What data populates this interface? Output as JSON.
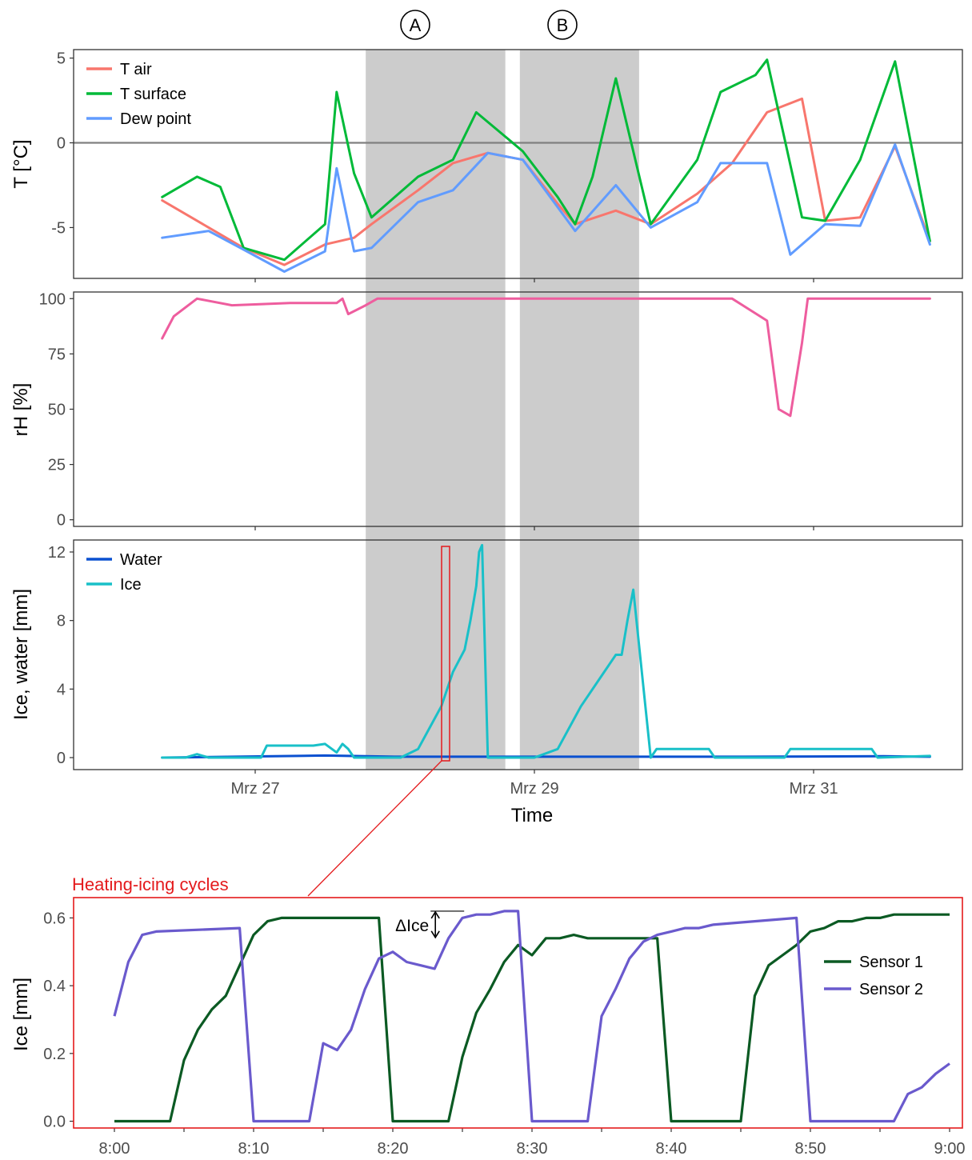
{
  "chart_data": [
    {
      "id": "temperature",
      "type": "line",
      "ylabel": "T [°C]",
      "ylim": [
        -8,
        5.5
      ],
      "yticks": [
        5,
        0,
        -5
      ],
      "ytick_labels": [
        "5",
        "0",
        "-5"
      ],
      "x_range_days": [
        "Mrz 26 08:00",
        "Mrz 31 20:00"
      ],
      "reference_line": 0,
      "shaded_periods": [
        {
          "label": "A",
          "start": "Mrz 27 19:00",
          "end": "Mrz 28 19:00"
        },
        {
          "label": "B",
          "start": "Mrz 28 21:30",
          "end": "Mrz 29 18:00"
        }
      ],
      "legend_position": "top-left",
      "series": [
        {
          "name": "T air",
          "color": "#f8766d",
          "x": [
            "Mrz 26 08:00",
            "Mrz 26 16:00",
            "Mrz 26 22:00",
            "Mrz 27 05:00",
            "Mrz 27 12:00",
            "Mrz 27 17:00",
            "Mrz 27 20:00",
            "Mrz 28 04:00",
            "Mrz 28 10:00",
            "Mrz 28 16:00",
            "Mrz 28 22:00",
            "Mrz 29 04:00",
            "Mrz 29 07:00",
            "Mrz 29 14:00",
            "Mrz 29 20:00",
            "Mrz 30 04:00",
            "Mrz 30 10:00",
            "Mrz 30 16:00",
            "Mrz 30 22:00",
            "Mrz 31 02:00",
            "Mrz 31 08:00",
            "Mrz 31 14:00",
            "Mrz 31 20:00"
          ],
          "y": [
            -3.4,
            -5.0,
            -6.2,
            -7.2,
            -6.0,
            -5.6,
            -4.8,
            -2.8,
            -1.2,
            -0.6,
            -1.0,
            -3.6,
            -4.8,
            -4.0,
            -4.8,
            -3.0,
            -1.2,
            1.8,
            2.6,
            -4.6,
            -4.4,
            -0.2,
            -5.8
          ]
        },
        {
          "name": "T surface",
          "color": "#00ba38",
          "x": [
            "Mrz 26 08:00",
            "Mrz 26 14:00",
            "Mrz 26 18:00",
            "Mrz 26 22:00",
            "Mrz 27 05:00",
            "Mrz 27 12:00",
            "Mrz 27 14:00",
            "Mrz 27 17:00",
            "Mrz 27 20:00",
            "Mrz 28 04:00",
            "Mrz 28 10:00",
            "Mrz 28 14:00",
            "Mrz 28 22:00",
            "Mrz 29 04:00",
            "Mrz 29 07:00",
            "Mrz 29 10:00",
            "Mrz 29 14:00",
            "Mrz 29 20:00",
            "Mrz 30 04:00",
            "Mrz 30 08:00",
            "Mrz 30 14:00",
            "Mrz 30 16:00",
            "Mrz 30 22:00",
            "Mrz 31 02:00",
            "Mrz 31 08:00",
            "Mrz 31 14:00",
            "Mrz 31 20:00"
          ],
          "y": [
            -3.2,
            -2.0,
            -2.6,
            -6.2,
            -6.9,
            -4.8,
            3.0,
            -1.8,
            -4.4,
            -2.0,
            -1.0,
            1.8,
            -0.5,
            -3.2,
            -4.8,
            -2.0,
            3.8,
            -4.8,
            -1.0,
            3.0,
            4.0,
            4.9,
            -4.4,
            -4.6,
            -1.0,
            4.8,
            -5.8
          ]
        },
        {
          "name": "Dew point",
          "color": "#619cff",
          "x": [
            "Mrz 26 08:00",
            "Mrz 26 16:00",
            "Mrz 26 22:00",
            "Mrz 27 05:00",
            "Mrz 27 12:00",
            "Mrz 27 14:00",
            "Mrz 27 17:00",
            "Mrz 27 20:00",
            "Mrz 28 04:00",
            "Mrz 28 10:00",
            "Mrz 28 16:00",
            "Mrz 28 22:00",
            "Mrz 29 04:00",
            "Mrz 29 07:00",
            "Mrz 29 14:00",
            "Mrz 29 20:00",
            "Mrz 30 04:00",
            "Mrz 30 08:00",
            "Mrz 30 16:00",
            "Mrz 30 20:00",
            "Mrz 31 02:00",
            "Mrz 31 08:00",
            "Mrz 31 14:00",
            "Mrz 31 20:00"
          ],
          "y": [
            -5.6,
            -5.2,
            -6.3,
            -7.6,
            -6.4,
            -1.5,
            -6.4,
            -6.2,
            -3.5,
            -2.8,
            -0.6,
            -1.0,
            -3.8,
            -5.2,
            -2.5,
            -5.0,
            -3.5,
            -1.2,
            -1.2,
            -6.6,
            -4.8,
            -4.9,
            -0.1,
            -6.0
          ]
        }
      ]
    },
    {
      "id": "humidity",
      "type": "line",
      "ylabel": "rH [%]",
      "ylim": [
        -3,
        103
      ],
      "yticks": [
        100,
        75,
        50,
        25,
        0
      ],
      "ytick_labels": [
        "100",
        "75",
        "50",
        "25",
        "0"
      ],
      "series": [
        {
          "name": "rH",
          "color": "#ee5d9e",
          "x": [
            "Mrz 26 08:00",
            "Mrz 26 10:00",
            "Mrz 26 14:00",
            "Mrz 26 20:00",
            "Mrz 27 06:00",
            "Mrz 27 14:00",
            "Mrz 27 15:00",
            "Mrz 27 16:00",
            "Mrz 27 19:00",
            "Mrz 27 21:00",
            "Mrz 29 22:00",
            "Mrz 30 10:00",
            "Mrz 30 16:00",
            "Mrz 30 18:00",
            "Mrz 30 20:00",
            "Mrz 30 22:00",
            "Mrz 30 23:00",
            "Mrz 31 20:00"
          ],
          "y": [
            82,
            92,
            100,
            97,
            98,
            98,
            100,
            93,
            97,
            100,
            100,
            100,
            90,
            50,
            47,
            80,
            100,
            100
          ]
        }
      ]
    },
    {
      "id": "ice_water",
      "type": "line",
      "ylabel": "Ice, water [mm]",
      "xlabel": "Time",
      "ylim": [
        -0.7,
        12.7
      ],
      "yticks": [
        12,
        8,
        4,
        0
      ],
      "ytick_labels": [
        "12",
        "8",
        "4",
        "0"
      ],
      "xticks": [
        "Mrz 27",
        "Mrz 29",
        "Mrz 31"
      ],
      "legend_position": "top-left",
      "series": [
        {
          "name": "Water",
          "color": "#0a50d0",
          "x": [
            "Mrz 26 08:00",
            "Mrz 27 12:00",
            "Mrz 28 00:00",
            "Mrz 29 12:00",
            "Mrz 30 12:00",
            "Mrz 31 12:00",
            "Mrz 31 20:00"
          ],
          "y": [
            0,
            0.12,
            0.05,
            0.05,
            0.05,
            0.08,
            0.05
          ]
        },
        {
          "name": "Ice",
          "color": "#19c0c8",
          "x": [
            "Mrz 26 08:00",
            "Mrz 26 12:00",
            "Mrz 26 14:00",
            "Mrz 26 16:00",
            "Mrz 27 01:00",
            "Mrz 27 02:00",
            "Mrz 27 10:00",
            "Mrz 27 12:00",
            "Mrz 27 14:00",
            "Mrz 27 15:00",
            "Mrz 27 16:00",
            "Mrz 27 17:00",
            "Mrz 27 20:00",
            "Mrz 28 01:00",
            "Mrz 28 04:00",
            "Mrz 28 08:00",
            "Mrz 28 10:00",
            "Mrz 28 12:00",
            "Mrz 28 13:00",
            "Mrz 28 14:00",
            "Mrz 28 14:30",
            "Mrz 28 15:00",
            "Mrz 28 16:00",
            "Mrz 29 00:00",
            "Mrz 29 04:00",
            "Mrz 29 08:00",
            "Mrz 29 12:00",
            "Mrz 29 14:00",
            "Mrz 29 15:00",
            "Mrz 29 16:00",
            "Mrz 29 17:00",
            "Mrz 29 20:00",
            "Mrz 29 21:00",
            "Mrz 30 06:00",
            "Mrz 30 07:00",
            "Mrz 30 10:00",
            "Mrz 30 19:00",
            "Mrz 30 20:00",
            "Mrz 31 10:00",
            "Mrz 31 11:00",
            "Mrz 31 20:00"
          ],
          "y": [
            0,
            0,
            0.2,
            0,
            0,
            0.7,
            0.7,
            0.8,
            0.3,
            0.8,
            0.5,
            0,
            0,
            0,
            0.5,
            3.0,
            5.0,
            6.3,
            8.0,
            10.0,
            12.0,
            12.4,
            0,
            0,
            0.5,
            3.0,
            5.0,
            6.0,
            6.0,
            8.0,
            9.8,
            0,
            0.5,
            0.5,
            0,
            0,
            0,
            0.5,
            0.5,
            0,
            0.1
          ]
        }
      ]
    },
    {
      "id": "heating_icing_cycles",
      "type": "line",
      "title": "Heating-icing cycles",
      "ylabel": "Ice [mm]",
      "xlim": [
        "8:00",
        "9:00"
      ],
      "ylim": [
        -0.02,
        0.66
      ],
      "xticks": [
        "8:00",
        "8:10",
        "8:20",
        "8:30",
        "8:40",
        "8:50",
        "9:00"
      ],
      "yticks": [
        0.6,
        0.4,
        0.2,
        0.0
      ],
      "ytick_labels": [
        "0.6",
        "0.4",
        "0.2",
        "0.0"
      ],
      "legend_position": "right",
      "annotation": {
        "label": "ΔIce",
        "x": "8:23",
        "from": 0.54,
        "to": 0.62
      },
      "series": [
        {
          "name": "Sensor 1",
          "color": "#0b5a23",
          "x": [
            "8:00",
            "8:04",
            "8:05",
            "8:06",
            "8:07",
            "8:08",
            "8:09",
            "8:10",
            "8:11",
            "8:12",
            "8:19",
            "8:20",
            "8:24",
            "8:25",
            "8:26",
            "8:27",
            "8:28",
            "8:29",
            "8:30",
            "8:31",
            "8:32",
            "8:33",
            "8:34",
            "8:39",
            "8:40",
            "8:45",
            "8:46",
            "8:47",
            "8:48",
            "8:49",
            "8:50",
            "8:51",
            "8:52",
            "8:53",
            "8:54",
            "8:55",
            "8:56",
            "8:57",
            "9:00"
          ],
          "y": [
            0,
            0,
            0.18,
            0.27,
            0.33,
            0.37,
            0.46,
            0.55,
            0.59,
            0.6,
            0.6,
            0,
            0,
            0.19,
            0.32,
            0.39,
            0.47,
            0.52,
            0.49,
            0.54,
            0.54,
            0.55,
            0.54,
            0.54,
            0,
            0,
            0.37,
            0.46,
            0.49,
            0.52,
            0.56,
            0.57,
            0.59,
            0.59,
            0.6,
            0.6,
            0.61,
            0.61,
            0.61
          ]
        },
        {
          "name": "Sensor 2",
          "color": "#6a5acd",
          "x": [
            "8:00",
            "8:01",
            "8:02",
            "8:03",
            "8:09",
            "8:10",
            "8:14",
            "8:15",
            "8:16",
            "8:17",
            "8:18",
            "8:19",
            "8:20",
            "8:21",
            "8:22",
            "8:23",
            "8:24",
            "8:25",
            "8:26",
            "8:27",
            "8:28",
            "8:29",
            "8:30",
            "8:34",
            "8:35",
            "8:36",
            "8:37",
            "8:38",
            "8:39",
            "8:40",
            "8:41",
            "8:42",
            "8:43",
            "8:49",
            "8:50",
            "8:56",
            "8:57",
            "8:58",
            "8:59",
            "9:00"
          ],
          "y": [
            0.31,
            0.47,
            0.55,
            0.56,
            0.57,
            0,
            0,
            0.23,
            0.21,
            0.27,
            0.39,
            0.48,
            0.5,
            0.47,
            0.46,
            0.45,
            0.54,
            0.6,
            0.61,
            0.61,
            0.62,
            0.62,
            0,
            0,
            0.31,
            0.39,
            0.48,
            0.53,
            0.55,
            0.56,
            0.57,
            0.57,
            0.58,
            0.6,
            0,
            0,
            0.08,
            0.1,
            0.14,
            0.17
          ]
        }
      ]
    }
  ],
  "marker_A": "A",
  "marker_B": "B"
}
